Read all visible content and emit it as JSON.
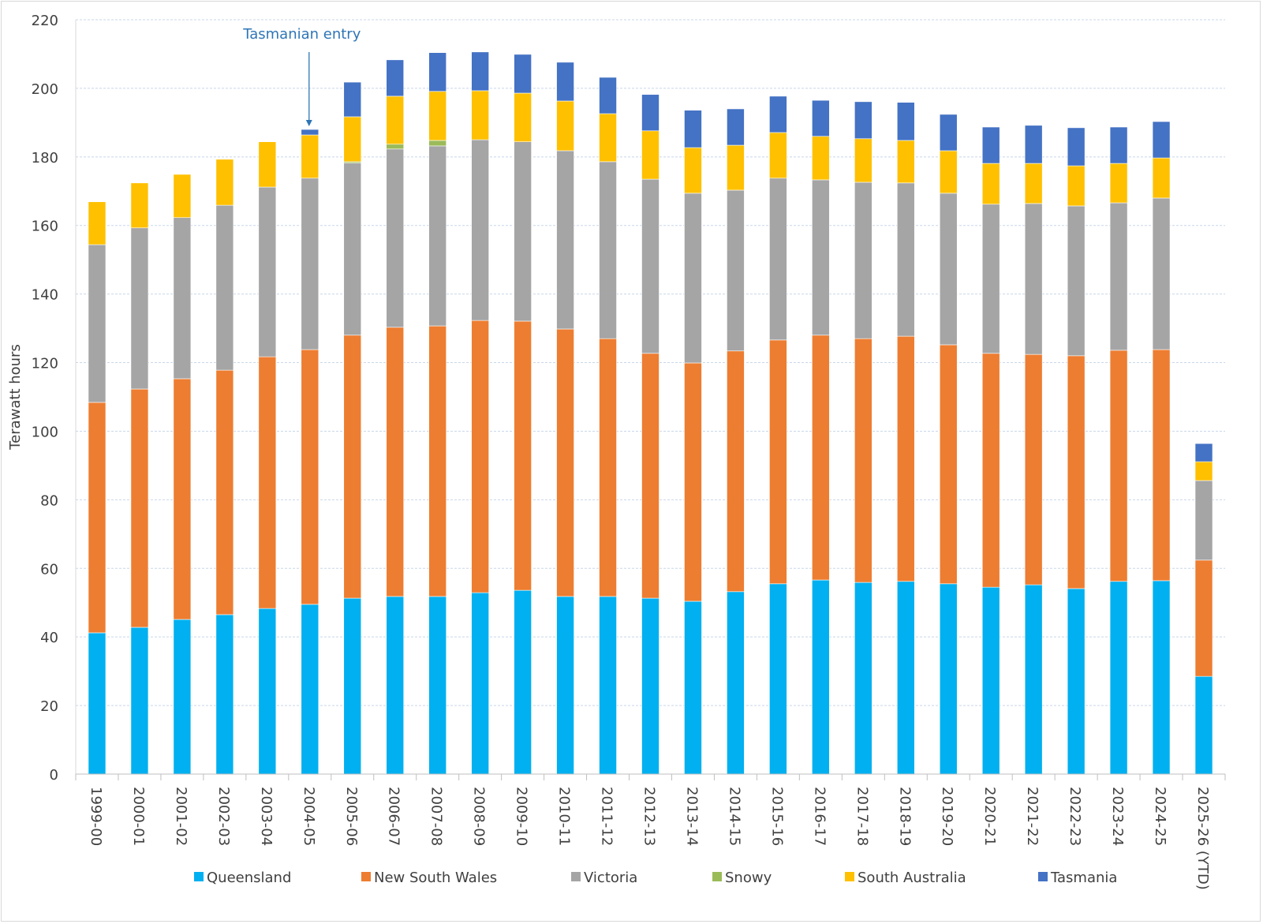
{
  "chart_data": {
    "type": "bar",
    "stacked": true,
    "title": "",
    "xlabel": "",
    "ylabel": "Terawatt hours",
    "ylim": [
      0,
      220
    ],
    "yticks": [
      0,
      20,
      40,
      60,
      80,
      100,
      120,
      140,
      160,
      180,
      200,
      220
    ],
    "grid": true,
    "legend_position": "bottom",
    "categories": [
      "1999-00",
      "2000-01",
      "2001-02",
      "2002-03",
      "2003-04",
      "2004-05",
      "2005-06",
      "2006-07",
      "2007-08",
      "2008-09",
      "2009-10",
      "2010-11",
      "2011-12",
      "2012-13",
      "2013-14",
      "2014-15",
      "2015-16",
      "2016-17",
      "2017-18",
      "2018-19",
      "2019-20",
      "2020-21",
      "2021-22",
      "2022-23",
      "2023-24",
      "2024-25",
      "2025-26 (YTD)"
    ],
    "series": [
      {
        "name": "Queensland",
        "color": "#00b0f0",
        "values": [
          41.2,
          42.8,
          45.1,
          46.5,
          48.3,
          49.5,
          51.3,
          51.8,
          51.8,
          52.9,
          53.6,
          51.8,
          51.8,
          51.3,
          50.4,
          53.2,
          55.5,
          56.6,
          55.9,
          56.2,
          55.5,
          54.5,
          55.2,
          54.1,
          56.2,
          56.4,
          28.5
        ]
      },
      {
        "name": "New South Wales",
        "color": "#ed7d31",
        "values": [
          67.2,
          69.5,
          70.2,
          71.3,
          73.4,
          74.3,
          76.7,
          78.5,
          78.9,
          79.4,
          78.5,
          78.0,
          75.2,
          71.4,
          69.5,
          70.2,
          71.1,
          71.4,
          71.1,
          71.5,
          69.7,
          68.2,
          67.2,
          67.9,
          67.4,
          67.4,
          33.9
        ]
      },
      {
        "name": "Victoria",
        "color": "#a5a5a5",
        "values": [
          46.0,
          47.0,
          47.0,
          48.1,
          49.5,
          50.0,
          50.2,
          52.0,
          52.5,
          52.7,
          52.3,
          52.0,
          51.6,
          50.8,
          49.5,
          46.9,
          47.2,
          45.3,
          45.6,
          44.7,
          44.2,
          43.5,
          44.0,
          43.7,
          43.0,
          44.2,
          23.2
        ]
      },
      {
        "name": "Snowy",
        "color": "#9bbb59",
        "values": [
          0,
          0,
          0,
          0,
          0,
          0,
          0.4,
          1.4,
          1.6,
          0,
          0,
          0,
          0,
          0,
          0,
          0,
          0,
          0,
          0,
          0,
          0,
          0,
          0,
          0,
          0,
          0,
          0
        ]
      },
      {
        "name": "South Australia",
        "color": "#ffc000",
        "values": [
          12.5,
          13.1,
          12.6,
          13.4,
          13.2,
          12.6,
          13.1,
          14.0,
          14.3,
          14.3,
          14.2,
          14.5,
          14.0,
          14.1,
          13.3,
          13.1,
          13.3,
          12.7,
          12.7,
          12.4,
          12.4,
          11.9,
          11.7,
          11.7,
          11.5,
          11.7,
          5.5
        ]
      },
      {
        "name": "Tasmania",
        "color": "#4472c4",
        "values": [
          0,
          0,
          0,
          0,
          0,
          1.6,
          10.1,
          10.6,
          11.3,
          11.3,
          11.3,
          11.3,
          10.6,
          10.6,
          10.9,
          10.6,
          10.6,
          10.5,
          10.8,
          11.1,
          10.6,
          10.6,
          11.1,
          11.1,
          10.6,
          10.6,
          5.3
        ]
      }
    ],
    "annotations": [
      {
        "text": "Tasmanian entry",
        "category": "2004-05",
        "color": "#2e75b6"
      }
    ]
  }
}
